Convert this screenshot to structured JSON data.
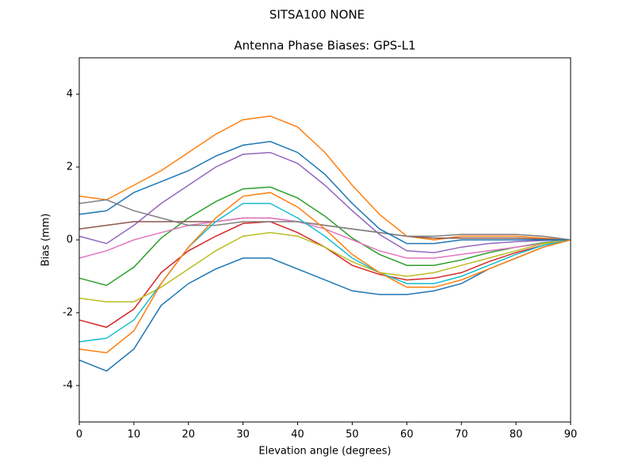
{
  "chart_data": {
    "type": "line",
    "suptitle": "SITSA100        NONE",
    "title": "Antenna Phase Biases: GPS-L1",
    "x_label": "Elevation angle (degrees)",
    "y_label": "Bias (mm)",
    "x": [
      0,
      5,
      10,
      15,
      20,
      25,
      30,
      35,
      40,
      45,
      50,
      55,
      60,
      65,
      70,
      75,
      80,
      85,
      90
    ],
    "xlim": [
      0,
      90
    ],
    "xticks": [
      0,
      10,
      20,
      30,
      40,
      50,
      60,
      70,
      80,
      90
    ],
    "ylim": [
      -5,
      5
    ],
    "yticks": [
      -4,
      -2,
      0,
      2,
      4
    ],
    "series": [
      {
        "color": "#1f77b4",
        "values": [
          -3.3,
          -3.6,
          -3.0,
          -1.8,
          -1.2,
          -0.8,
          -0.5,
          -0.5,
          -0.8,
          -1.1,
          -1.4,
          -1.5,
          -1.5,
          -1.4,
          -1.2,
          -0.8,
          -0.5,
          -0.2,
          0
        ]
      },
      {
        "color": "#ff7f0e",
        "values": [
          1.2,
          1.1,
          1.5,
          1.9,
          2.4,
          2.9,
          3.3,
          3.4,
          3.1,
          2.4,
          1.5,
          0.7,
          0.1,
          0.0,
          0.1,
          0.1,
          0.1,
          0.05,
          0
        ]
      },
      {
        "color": "#2ca02c",
        "values": [
          -1.05,
          -1.25,
          -0.75,
          0.05,
          0.6,
          1.05,
          1.4,
          1.45,
          1.15,
          0.65,
          0.05,
          -0.4,
          -0.7,
          -0.7,
          -0.55,
          -0.35,
          -0.2,
          -0.08,
          0
        ]
      },
      {
        "color": "#d62728",
        "values": [
          -2.2,
          -2.4,
          -1.9,
          -0.9,
          -0.3,
          0.1,
          0.45,
          0.5,
          0.2,
          -0.2,
          -0.7,
          -0.95,
          -1.1,
          -1.05,
          -0.9,
          -0.6,
          -0.35,
          -0.15,
          0
        ]
      },
      {
        "color": "#9467bd",
        "values": [
          0.1,
          -0.1,
          0.4,
          1.0,
          1.5,
          2.0,
          2.35,
          2.4,
          2.1,
          1.5,
          0.8,
          0.15,
          -0.3,
          -0.35,
          -0.2,
          -0.1,
          -0.05,
          -0.02,
          0
        ]
      },
      {
        "color": "#8c564b",
        "values": [
          0.3,
          0.4,
          0.5,
          0.5,
          0.5,
          0.5,
          0.6,
          0.6,
          0.5,
          0.4,
          0.3,
          0.2,
          0.1,
          0.05,
          0.05,
          0.05,
          0.05,
          0.02,
          0
        ]
      },
      {
        "color": "#e377c2",
        "values": [
          -0.5,
          -0.3,
          0,
          0.2,
          0.4,
          0.5,
          0.6,
          0.6,
          0.5,
          0.3,
          0,
          -0.3,
          -0.5,
          -0.5,
          -0.4,
          -0.3,
          -0.2,
          -0.1,
          0
        ]
      },
      {
        "color": "#7f7f7f",
        "values": [
          1.0,
          1.1,
          0.8,
          0.6,
          0.4,
          0.4,
          0.5,
          0.5,
          0.5,
          0.4,
          0.3,
          0.2,
          0.1,
          0.1,
          0.15,
          0.15,
          0.15,
          0.1,
          0
        ]
      },
      {
        "color": "#bcbd22",
        "values": [
          -1.6,
          -1.7,
          -1.7,
          -1.3,
          -0.8,
          -0.3,
          0.1,
          0.2,
          0.1,
          -0.2,
          -0.6,
          -0.9,
          -1.0,
          -0.9,
          -0.7,
          -0.5,
          -0.3,
          -0.1,
          0
        ]
      },
      {
        "color": "#17becf",
        "values": [
          -2.8,
          -2.7,
          -2.2,
          -1.2,
          -0.2,
          0.5,
          1.0,
          1.0,
          0.6,
          0.1,
          -0.5,
          -0.9,
          -1.2,
          -1.2,
          -1.0,
          -0.7,
          -0.4,
          -0.15,
          0
        ]
      },
      {
        "color": "#1f77b4",
        "values": [
          0.7,
          0.8,
          1.3,
          1.6,
          1.9,
          2.3,
          2.6,
          2.7,
          2.4,
          1.8,
          1.0,
          0.3,
          -0.1,
          -0.1,
          0,
          0,
          0,
          0,
          0
        ]
      },
      {
        "color": "#ff7f0e",
        "values": [
          -3.0,
          -3.1,
          -2.5,
          -1.2,
          -0.2,
          0.6,
          1.2,
          1.3,
          0.9,
          0.3,
          -0.4,
          -0.9,
          -1.3,
          -1.3,
          -1.1,
          -0.8,
          -0.5,
          -0.2,
          0
        ]
      }
    ]
  }
}
